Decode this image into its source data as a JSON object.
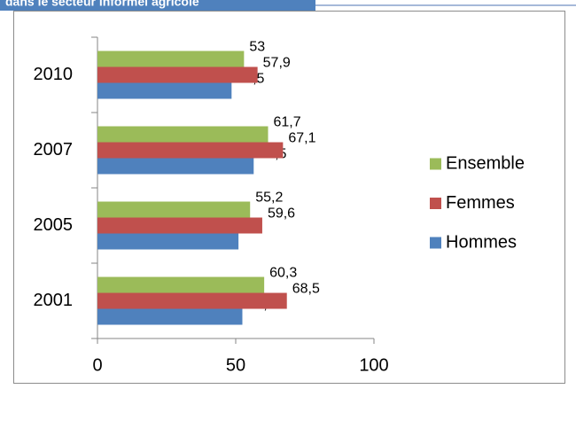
{
  "header": {
    "title": "dans le secteur informel agricole"
  },
  "chart_data": {
    "type": "hbar",
    "categories": [
      "2001",
      "2005",
      "2007",
      "2010"
    ],
    "series": [
      {
        "name": "Hommes",
        "color": "#4f81bd",
        "values": [
          52.4,
          51,
          56.5,
          48.5
        ],
        "value_labels": [
          "52,4",
          "51",
          "56,5",
          "48,5"
        ]
      },
      {
        "name": "Femmes",
        "color": "#c0504d",
        "values": [
          68.5,
          59.6,
          67.1,
          57.9
        ],
        "value_labels": [
          "68,5",
          "59,6",
          "67,1",
          "57,9"
        ]
      },
      {
        "name": "Ensemble",
        "color": "#9bbb59",
        "values": [
          60.3,
          55.2,
          61.7,
          53
        ],
        "value_labels": [
          "60,3",
          "55,2",
          "61,7",
          "53"
        ]
      }
    ],
    "xlim": [
      0,
      100
    ],
    "xticks": [
      0,
      50,
      100
    ],
    "grid": false,
    "legend": "right"
  }
}
